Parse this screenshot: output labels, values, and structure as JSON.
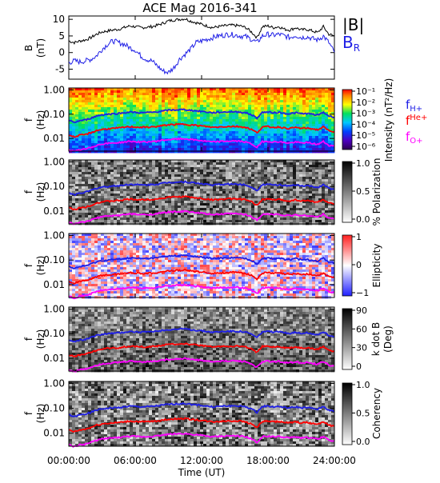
{
  "chart_data": {
    "title": "ACE Mag 2016-341",
    "xlabel": "Time (UT)",
    "x_ticks": [
      "00:00:00",
      "06:00:00",
      "12:00:00",
      "18:00:00",
      "24:00:00"
    ],
    "x_range_hours": [
      0,
      24
    ],
    "type": "line",
    "colors": {
      "black": "#000000",
      "blue": "#1f1fe6",
      "red": "#ff0000",
      "magenta": "#ff00ff"
    },
    "panels": [
      {
        "id": "mag",
        "type": "line",
        "ylabel": [
          "B",
          "(nT)"
        ],
        "ylim": [
          -8,
          11
        ],
        "y_ticks": [
          10,
          5,
          0,
          -5
        ],
        "legend": [
          "|B|",
          "B_R"
        ],
        "series": [
          {
            "name": "|B|",
            "color": "#000000",
            "x": [
              0,
              0.5,
              1,
              1.5,
              2,
              2.5,
              3,
              3.5,
              4,
              4.5,
              5,
              5.5,
              6,
              6.5,
              7,
              7.5,
              8,
              8.5,
              9,
              9.5,
              10,
              10.5,
              11,
              11.5,
              12,
              12.5,
              13,
              13.5,
              14,
              14.5,
              15,
              15.5,
              16,
              16.5,
              17,
              17.5,
              18,
              18.5,
              19,
              19.5,
              20,
              20.5,
              21,
              21.5,
              22,
              22.5,
              23,
              23.5,
              24
            ],
            "y": [
              3.5,
              3.0,
              3.5,
              3.8,
              4.5,
              5.5,
              6.2,
              6.5,
              6.8,
              7.0,
              7.5,
              8.0,
              7.8,
              7.5,
              7.6,
              7.8,
              8.2,
              8.8,
              9.5,
              9.8,
              10.0,
              10.2,
              9.5,
              9.0,
              8.5,
              8.0,
              7.5,
              7.8,
              8.0,
              8.2,
              8.2,
              8.0,
              7.5,
              6.2,
              4.5,
              7.8,
              8.0,
              7.5,
              7.8,
              7.0,
              6.8,
              7.5,
              6.8,
              7.0,
              6.5,
              6.0,
              7.8,
              5.5,
              5.0
            ]
          },
          {
            "name": "B_R",
            "color": "#1f1fe6",
            "x": [
              0,
              0.5,
              1,
              1.5,
              2,
              2.5,
              3,
              3.5,
              4,
              4.5,
              5,
              5.5,
              6,
              6.5,
              7,
              7.5,
              8,
              8.5,
              9,
              9.5,
              10,
              10.5,
              11,
              11.5,
              12,
              12.5,
              13,
              13.5,
              14,
              14.5,
              15,
              15.5,
              16,
              16.5,
              17,
              17.5,
              18,
              18.5,
              19,
              19.5,
              20,
              20.5,
              21,
              21.5,
              22,
              22.5,
              23,
              23.5,
              24
            ],
            "y": [
              -3.0,
              -2.5,
              -2.8,
              -2.5,
              -2.0,
              -1.0,
              1.0,
              2.5,
              3.5,
              3.0,
              2.5,
              1.5,
              0.8,
              -1.0,
              -2.0,
              -2.5,
              -4.0,
              -5.5,
              -6.0,
              -4.5,
              -2.0,
              -0.5,
              1.0,
              3.0,
              3.5,
              4.0,
              4.5,
              5.0,
              5.2,
              5.5,
              5.3,
              5.0,
              4.8,
              4.0,
              3.0,
              5.0,
              5.5,
              5.2,
              5.5,
              5.0,
              4.5,
              5.2,
              4.5,
              4.8,
              4.2,
              3.8,
              5.0,
              3.0,
              0.0
            ]
          }
        ]
      },
      {
        "id": "intensity",
        "type": "heatmap",
        "ylabel": [
          "f",
          "(Hz)"
        ],
        "y_ticks": [
          "1.00",
          "0.10",
          "0.01"
        ],
        "colorbar": {
          "label": "Intensity (nT²/Hz)",
          "ticks": [
            "10⁻¹",
            "10⁻²",
            "10⁻³",
            "10⁻⁴",
            "10⁻⁵",
            "10⁻⁶"
          ]
        },
        "legend": [
          "f_H+",
          "f_He+",
          "f_O+"
        ]
      },
      {
        "id": "polarization",
        "type": "heatmap",
        "ylabel": [
          "f",
          "(Hz)"
        ],
        "y_ticks": [
          "1.00",
          "0.10",
          "0.01"
        ],
        "colorbar": {
          "label": "% Polarization",
          "ticks": [
            "1.0",
            "0.5",
            "0.0"
          ]
        }
      },
      {
        "id": "ellipticity",
        "type": "heatmap",
        "ylabel": [
          "f",
          "(Hz)"
        ],
        "y_ticks": [
          "1.00",
          "0.10",
          "0.01"
        ],
        "colorbar": {
          "label": "Ellipticity",
          "ticks": [
            "1",
            "0",
            "−1"
          ]
        }
      },
      {
        "id": "kdotb",
        "type": "heatmap",
        "ylabel": [
          "f",
          "(Hz)"
        ],
        "y_ticks": [
          "1.00",
          "0.10",
          "0.01"
        ],
        "colorbar": {
          "label": [
            "k dot B",
            "(Deg)"
          ],
          "ticks": [
            "90",
            "60",
            "30",
            "0"
          ]
        }
      },
      {
        "id": "coherency",
        "type": "heatmap",
        "ylabel": [
          "f",
          "(Hz)"
        ],
        "y_ticks": [
          "1.00",
          "0.10",
          "0.01"
        ],
        "colorbar": {
          "label": "Coherency",
          "ticks": [
            "1.0",
            "0.5",
            "0.0"
          ]
        }
      }
    ],
    "gyrofrequency_lines": {
      "frequency_range_hz": [
        0.003,
        1.2
      ],
      "x": [
        0,
        0.5,
        1,
        1.5,
        2,
        2.5,
        3,
        3.5,
        4,
        4.5,
        5,
        5.5,
        6,
        6.5,
        7,
        7.5,
        8,
        8.5,
        9,
        9.5,
        10,
        10.5,
        11,
        11.5,
        12,
        12.5,
        13,
        13.5,
        14,
        14.5,
        15,
        15.5,
        16,
        16.5,
        17,
        17.5,
        18,
        18.5,
        19,
        19.5,
        20,
        20.5,
        21,
        21.5,
        22,
        22.5,
        23,
        23.5,
        24
      ],
      "series": [
        {
          "name": "f_H+",
          "color": "#1f1fe6",
          "y": [
            0.054,
            0.046,
            0.054,
            0.058,
            0.069,
            0.084,
            0.095,
            0.099,
            0.104,
            0.107,
            0.114,
            0.122,
            0.119,
            0.114,
            0.116,
            0.119,
            0.125,
            0.134,
            0.145,
            0.149,
            0.152,
            0.155,
            0.145,
            0.137,
            0.13,
            0.122,
            0.114,
            0.119,
            0.122,
            0.125,
            0.125,
            0.122,
            0.114,
            0.095,
            0.069,
            0.119,
            0.122,
            0.114,
            0.119,
            0.107,
            0.104,
            0.114,
            0.104,
            0.107,
            0.099,
            0.091,
            0.119,
            0.084,
            0.076
          ]
        },
        {
          "name": "f_He+",
          "color": "#ff0000",
          "y": [
            0.0135,
            0.0115,
            0.0135,
            0.0145,
            0.0172,
            0.021,
            0.0236,
            0.0248,
            0.0259,
            0.0267,
            0.0286,
            0.0305,
            0.0297,
            0.0286,
            0.029,
            0.0297,
            0.0313,
            0.0335,
            0.0362,
            0.0373,
            0.0381,
            0.0389,
            0.0362,
            0.0343,
            0.0324,
            0.0305,
            0.0286,
            0.0297,
            0.0305,
            0.0313,
            0.0313,
            0.0305,
            0.0286,
            0.0236,
            0.0172,
            0.0297,
            0.0305,
            0.0286,
            0.0297,
            0.0267,
            0.0259,
            0.0286,
            0.0259,
            0.0267,
            0.0248,
            0.0229,
            0.0297,
            0.021,
            0.0191
          ]
        },
        {
          "name": "f_O+",
          "color": "#ff00ff",
          "y": [
            0.0034,
            0.0029,
            0.0034,
            0.0036,
            0.0043,
            0.0052,
            0.0059,
            0.0062,
            0.0065,
            0.0067,
            0.0071,
            0.0076,
            0.0074,
            0.0071,
            0.0072,
            0.0074,
            0.0078,
            0.0084,
            0.009,
            0.0093,
            0.0095,
            0.0097,
            0.009,
            0.0086,
            0.0081,
            0.0076,
            0.0071,
            0.0074,
            0.0076,
            0.0078,
            0.0078,
            0.0076,
            0.0071,
            0.0059,
            0.0043,
            0.0074,
            0.0076,
            0.0071,
            0.0074,
            0.0067,
            0.0065,
            0.0071,
            0.0065,
            0.0067,
            0.0062,
            0.0057,
            0.0074,
            0.0052,
            0.0048
          ]
        }
      ]
    }
  }
}
